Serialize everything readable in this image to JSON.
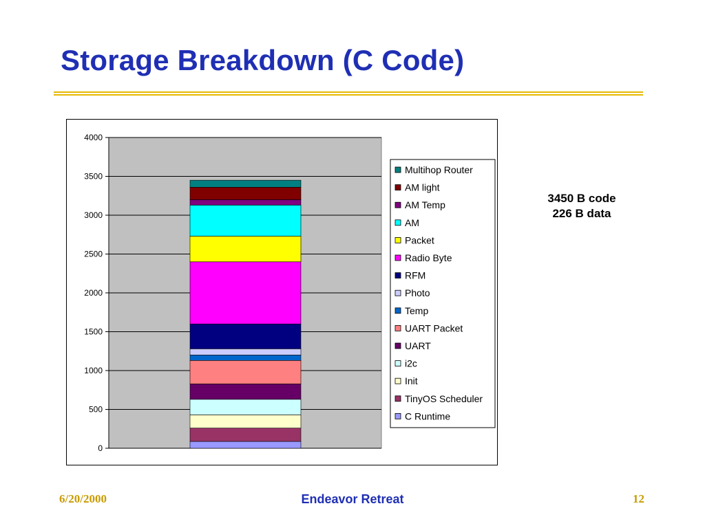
{
  "slide": {
    "title": "Storage Breakdown (C Code)",
    "note_line1": "3450 B code",
    "note_line2": "226 B data",
    "footer_date": "6/20/2000",
    "footer_center": "Endeavor Retreat",
    "footer_page": "12",
    "title_color": "#1f2fb4",
    "rule_color": "#e6b800"
  },
  "chart_data": {
    "type": "bar",
    "stacked": true,
    "categories": [
      ""
    ],
    "ylim": [
      0,
      4000
    ],
    "yticks": [
      0,
      500,
      1000,
      1500,
      2000,
      2500,
      3000,
      3500,
      4000
    ],
    "grid": true,
    "plot_background": "#c0c0c0",
    "legend_position": "right",
    "series": [
      {
        "name": "C Runtime",
        "values": [
          88
        ],
        "color": "#9999ff"
      },
      {
        "name": "TinyOS Scheduler",
        "values": [
          172
        ],
        "color": "#993366"
      },
      {
        "name": "Init",
        "values": [
          170
        ],
        "color": "#ffffcc"
      },
      {
        "name": "i2c",
        "values": [
          200
        ],
        "color": "#ccffff"
      },
      {
        "name": "UART",
        "values": [
          198
        ],
        "color": "#660066"
      },
      {
        "name": "UART Packet",
        "values": [
          302
        ],
        "color": "#ff8080"
      },
      {
        "name": "Temp",
        "values": [
          70
        ],
        "color": "#0066cc"
      },
      {
        "name": "Photo",
        "values": [
          80
        ],
        "color": "#ccccff"
      },
      {
        "name": "RFM",
        "values": [
          320
        ],
        "color": "#000080"
      },
      {
        "name": "Radio Byte",
        "values": [
          800
        ],
        "color": "#ff00ff"
      },
      {
        "name": "Packet",
        "values": [
          330
        ],
        "color": "#ffff00"
      },
      {
        "name": "AM",
        "values": [
          400
        ],
        "color": "#00ffff"
      },
      {
        "name": "AM Temp",
        "values": [
          70
        ],
        "color": "#800080"
      },
      {
        "name": "AM light",
        "values": [
          160
        ],
        "color": "#800000"
      },
      {
        "name": "Multihop Router",
        "values": [
          90
        ],
        "color": "#008080"
      }
    ]
  }
}
